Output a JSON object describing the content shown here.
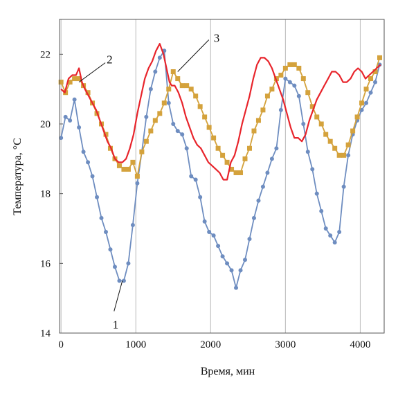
{
  "chart_data": {
    "type": "line",
    "xlabel": "Время, мин",
    "ylabel": "Температура, °С",
    "xlim": [
      -20,
      4320
    ],
    "ylim": [
      14,
      23
    ],
    "x_ticks": [
      0,
      1000,
      2000,
      3000,
      4000
    ],
    "y_ticks": [
      14,
      16,
      18,
      20,
      22
    ],
    "grid": "vertical",
    "series": [
      {
        "name": "1",
        "color": "#6e8dc0",
        "marker": "circle",
        "x": [
          0,
          60,
          120,
          180,
          240,
          300,
          360,
          420,
          480,
          540,
          600,
          660,
          720,
          780,
          840,
          900,
          960,
          1020,
          1080,
          1140,
          1200,
          1260,
          1320,
          1380,
          1440,
          1500,
          1560,
          1620,
          1680,
          1740,
          1800,
          1860,
          1920,
          1980,
          2040,
          2100,
          2160,
          2220,
          2280,
          2340,
          2400,
          2460,
          2520,
          2580,
          2640,
          2700,
          2760,
          2820,
          2880,
          2940,
          3000,
          3060,
          3120,
          3180,
          3240,
          3300,
          3360,
          3420,
          3480,
          3540,
          3600,
          3660,
          3720,
          3780,
          3840,
          3900,
          3960,
          4020,
          4080,
          4140,
          4200,
          4260
        ],
        "y": [
          19.6,
          20.2,
          20.1,
          20.7,
          19.9,
          19.2,
          18.9,
          18.5,
          17.9,
          17.3,
          16.9,
          16.4,
          15.9,
          15.5,
          15.5,
          16.0,
          17.1,
          18.3,
          19.2,
          20.2,
          21.0,
          21.5,
          21.9,
          22.1,
          20.6,
          20.0,
          19.8,
          19.7,
          19.3,
          18.5,
          18.4,
          17.9,
          17.2,
          16.9,
          16.8,
          16.5,
          16.2,
          16.0,
          15.8,
          15.3,
          15.8,
          16.1,
          16.7,
          17.3,
          17.8,
          18.2,
          18.6,
          19.0,
          19.3,
          20.4,
          21.3,
          21.2,
          21.1,
          20.8,
          20.0,
          19.2,
          18.7,
          18.0,
          17.5,
          17.0,
          16.8,
          16.6,
          16.9,
          18.2,
          19.1,
          19.7,
          20.1,
          20.4,
          20.6,
          20.9,
          21.2,
          21.7
        ]
      },
      {
        "name": "2",
        "color": "#d4a23c",
        "marker": "square",
        "x": [
          0,
          60,
          120,
          180,
          240,
          300,
          360,
          420,
          480,
          540,
          600,
          660,
          720,
          780,
          840,
          900,
          960,
          1020,
          1080,
          1140,
          1200,
          1260,
          1320,
          1380,
          1440,
          1500,
          1560,
          1620,
          1680,
          1740,
          1800,
          1860,
          1920,
          1980,
          2040,
          2100,
          2160,
          2220,
          2280,
          2340,
          2400,
          2460,
          2520,
          2580,
          2640,
          2700,
          2760,
          2820,
          2880,
          2940,
          3000,
          3060,
          3120,
          3180,
          3240,
          3300,
          3360,
          3420,
          3480,
          3540,
          3600,
          3660,
          3720,
          3780,
          3840,
          3900,
          3960,
          4020,
          4080,
          4140,
          4200,
          4260
        ],
        "y": [
          21.2,
          20.9,
          21.2,
          21.3,
          21.3,
          21.1,
          20.9,
          20.6,
          20.3,
          20.0,
          19.7,
          19.3,
          19.0,
          18.8,
          18.7,
          18.7,
          18.9,
          18.5,
          19.2,
          19.5,
          19.8,
          20.1,
          20.3,
          20.6,
          21.0,
          21.5,
          21.3,
          21.1,
          21.1,
          21.0,
          20.8,
          20.5,
          20.2,
          19.9,
          19.6,
          19.3,
          19.1,
          18.9,
          18.7,
          18.6,
          18.6,
          19.0,
          19.3,
          19.8,
          20.1,
          20.4,
          20.8,
          21.0,
          21.3,
          21.4,
          21.6,
          21.7,
          21.7,
          21.6,
          21.3,
          20.9,
          20.5,
          20.2,
          20.0,
          19.7,
          19.5,
          19.3,
          19.1,
          19.1,
          19.4,
          19.8,
          20.2,
          20.6,
          21.0,
          21.3,
          21.5,
          21.9
        ]
      },
      {
        "name": "3",
        "color": "#e8242b",
        "marker": "none",
        "x": [
          0,
          50,
          100,
          150,
          200,
          240,
          280,
          320,
          370,
          420,
          470,
          520,
          570,
          620,
          670,
          720,
          770,
          820,
          870,
          920,
          970,
          1020,
          1070,
          1120,
          1170,
          1220,
          1270,
          1320,
          1370,
          1420,
          1450,
          1480,
          1520,
          1570,
          1620,
          1670,
          1720,
          1770,
          1820,
          1870,
          1920,
          1970,
          2020,
          2070,
          2120,
          2170,
          2220,
          2270,
          2320,
          2370,
          2420,
          2470,
          2520,
          2570,
          2620,
          2670,
          2720,
          2770,
          2820,
          2870,
          2920,
          2970,
          3020,
          3070,
          3120,
          3170,
          3220,
          3270,
          3320,
          3370,
          3420,
          3470,
          3520,
          3570,
          3620,
          3670,
          3720,
          3770,
          3820,
          3870,
          3920,
          3970,
          4020,
          4070,
          4120,
          4170,
          4220,
          4270
        ],
        "y": [
          21.0,
          20.9,
          21.3,
          21.4,
          21.4,
          21.6,
          21.2,
          21.0,
          20.8,
          20.6,
          20.4,
          20.1,
          19.8,
          19.5,
          19.3,
          19.0,
          18.9,
          18.9,
          19.0,
          19.3,
          19.7,
          20.3,
          20.8,
          21.3,
          21.6,
          21.8,
          22.1,
          22.3,
          22.0,
          21.5,
          21.2,
          21.1,
          21.1,
          20.9,
          20.6,
          20.2,
          19.9,
          19.6,
          19.4,
          19.3,
          19.1,
          18.9,
          18.8,
          18.7,
          18.6,
          18.4,
          18.4,
          18.9,
          19.1,
          19.5,
          20.0,
          20.4,
          20.8,
          21.3,
          21.7,
          21.9,
          21.9,
          21.8,
          21.6,
          21.3,
          21.0,
          20.7,
          20.3,
          19.9,
          19.6,
          19.6,
          19.5,
          19.7,
          20.1,
          20.4,
          20.7,
          20.9,
          21.1,
          21.3,
          21.5,
          21.5,
          21.4,
          21.2,
          21.2,
          21.3,
          21.5,
          21.6,
          21.5,
          21.3,
          21.4,
          21.5,
          21.6,
          21.7
        ]
      }
    ],
    "callouts": [
      {
        "label": "1",
        "series": "1",
        "x": 820,
        "y": 15.5
      },
      {
        "label": "2",
        "series": "2",
        "x": 240,
        "y": 21.2
      },
      {
        "label": "3",
        "series": "3",
        "x": 1560,
        "y": 21.5
      }
    ]
  }
}
